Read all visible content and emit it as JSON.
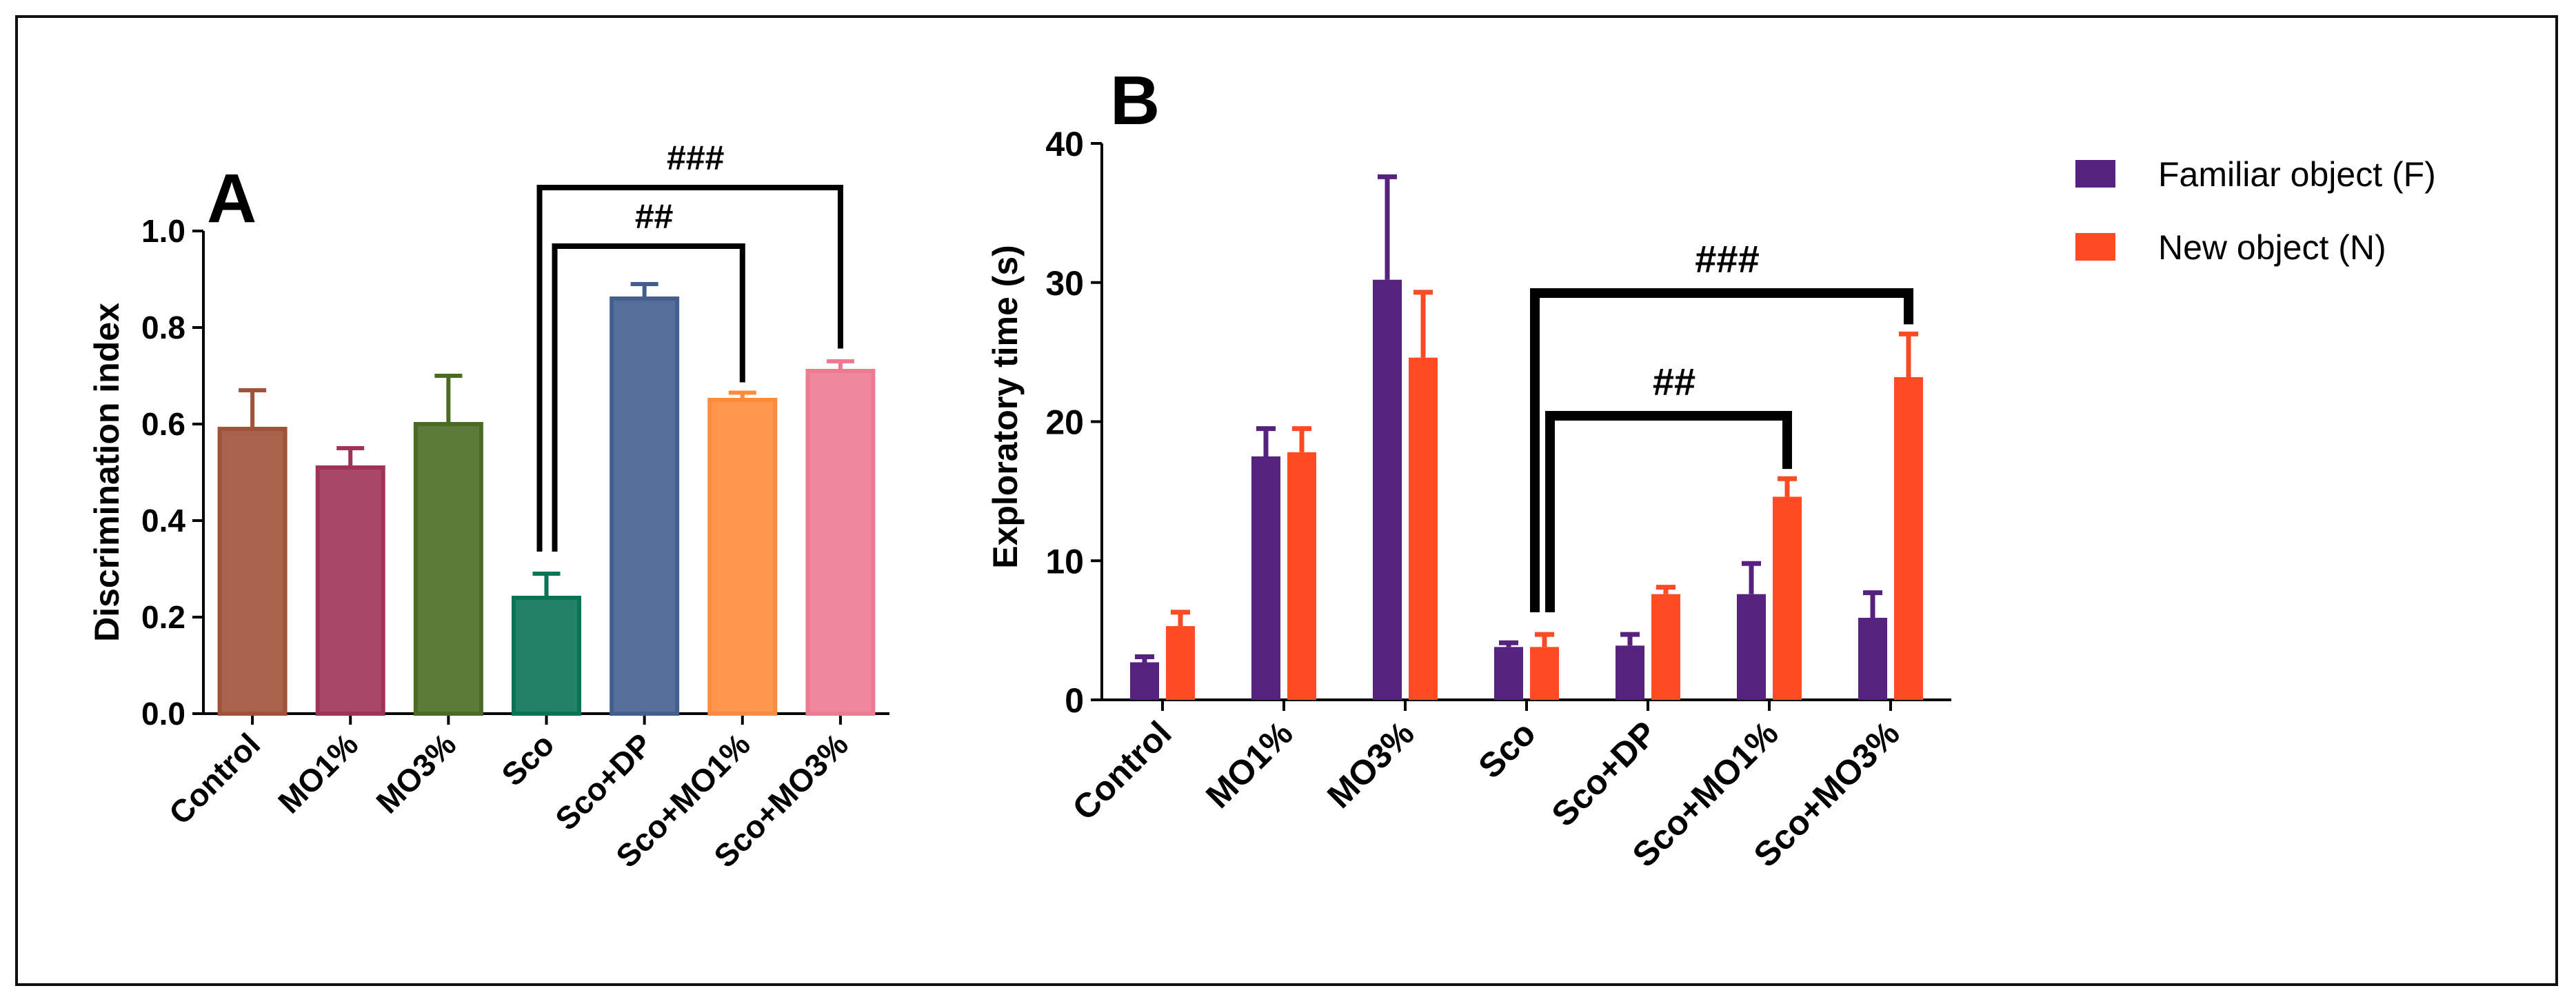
{
  "chart_data": [
    {
      "type": "bar",
      "panel_label": "A",
      "title": "",
      "xlabel": "",
      "ylabel": "Discrimination index",
      "ylim": [
        0,
        1.0
      ],
      "yticks": [
        "0.0",
        "0.2",
        "0.4",
        "0.6",
        "0.8",
        "1.0"
      ],
      "categories": [
        "Control",
        "MO1%",
        "MO3%",
        "Sco",
        "Sco+DP",
        "Sco+MO1%",
        "Sco+MO3%"
      ],
      "values": [
        0.59,
        0.51,
        0.6,
        0.24,
        0.86,
        0.65,
        0.71
      ],
      "errors": [
        0.08,
        0.04,
        0.1,
        0.05,
        0.03,
        0.015,
        0.02
      ],
      "colors": [
        "#A0523A",
        "#9E3358",
        "#4B6B25",
        "#0A7356",
        "#445F8F",
        "#FF8C3C",
        "#EE7A92"
      ],
      "annotations": [
        {
          "label": "##",
          "from": "Sco",
          "to": "Sco+MO1%"
        },
        {
          "label": "###",
          "from": "Sco",
          "to": "Sco+MO3%"
        }
      ]
    },
    {
      "type": "bar",
      "panel_label": "B",
      "title": "",
      "xlabel": "",
      "ylabel": "Exploratory time (s)",
      "ylim": [
        0,
        40
      ],
      "yticks": [
        "0",
        "10",
        "20",
        "30",
        "40"
      ],
      "categories": [
        "Control",
        "MO1%",
        "MO3%",
        "Sco",
        "Sco+DP",
        "Sco+MO1%",
        "Sco+MO3%"
      ],
      "series": [
        {
          "name": "Familiar object (F)",
          "color": "#55237F",
          "values": [
            2.7,
            17.5,
            30.2,
            3.8,
            3.9,
            7.6,
            5.9
          ],
          "errors": [
            0.4,
            2.0,
            7.4,
            0.3,
            0.8,
            2.2,
            1.8
          ]
        },
        {
          "name": "New object (N)",
          "color": "#FF4B24",
          "values": [
            5.3,
            17.8,
            24.6,
            3.8,
            7.6,
            14.6,
            23.2
          ],
          "errors": [
            1.0,
            1.7,
            4.7,
            0.9,
            0.5,
            1.3,
            3.1
          ]
        }
      ],
      "legend_position": "top-right",
      "annotations": [
        {
          "label": "##",
          "from": "Sco",
          "to": "Sco+MO1%"
        },
        {
          "label": "###",
          "from": "Sco",
          "to": "Sco+MO3%"
        }
      ]
    }
  ]
}
